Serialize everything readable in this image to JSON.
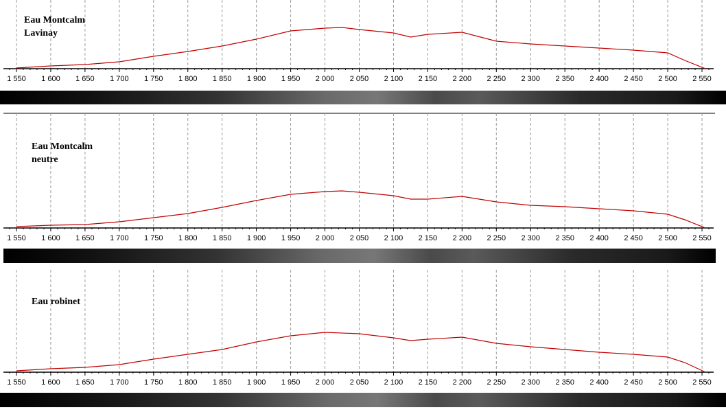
{
  "chart_data": [
    {
      "type": "line",
      "title": [
        "Eau Montcalm",
        "Lavinay"
      ],
      "color": "#c00000",
      "grid": true,
      "x": [
        1550,
        1600,
        1650,
        1700,
        1750,
        1800,
        1850,
        1900,
        1950,
        2000,
        2025,
        2050,
        2100,
        2125,
        2150,
        2200,
        2250,
        2300,
        2350,
        2400,
        2450,
        2500,
        2525,
        2555
      ],
      "values": [
        1,
        4,
        6,
        10,
        18,
        25,
        33,
        43,
        55,
        59,
        60,
        57,
        52,
        46,
        50,
        53,
        40,
        36,
        33,
        30,
        27,
        23,
        12,
        0
      ],
      "xlim": [
        1531,
        2567
      ],
      "ylim": [
        0,
        100
      ],
      "xticks": [
        {
          "value": 1550,
          "label": "1 550"
        },
        {
          "value": 1600,
          "label": "1 600"
        },
        {
          "value": 1650,
          "label": "1 650"
        },
        {
          "value": 1700,
          "label": "1 700"
        },
        {
          "value": 1750,
          "label": "1 750"
        },
        {
          "value": 1800,
          "label": "1 800"
        },
        {
          "value": 1850,
          "label": "1 850"
        },
        {
          "value": 1900,
          "label": "1 900"
        },
        {
          "value": 1950,
          "label": "1 950"
        },
        {
          "value": 2000,
          "label": "2 000"
        },
        {
          "value": 2050,
          "label": "2 050"
        },
        {
          "value": 2100,
          "label": "2 100"
        },
        {
          "value": 2150,
          "label": "2 150"
        },
        {
          "value": 2200,
          "label": "2 200"
        },
        {
          "value": 2250,
          "label": "2 250"
        },
        {
          "value": 2300,
          "label": "2 300"
        },
        {
          "value": 2350,
          "label": "2 350"
        },
        {
          "value": 2400,
          "label": "2 400"
        },
        {
          "value": 2450,
          "label": "2 450"
        },
        {
          "value": 2500,
          "label": "2 500"
        },
        {
          "value": 2550,
          "label": "2 550"
        }
      ]
    },
    {
      "type": "line",
      "title": [
        "Eau Montcalm",
        "neutre"
      ],
      "color": "#c00000",
      "grid": true,
      "x": [
        1550,
        1600,
        1650,
        1700,
        1750,
        1800,
        1850,
        1900,
        1950,
        2000,
        2025,
        2050,
        2100,
        2125,
        2150,
        2200,
        2250,
        2300,
        2350,
        2400,
        2450,
        2500,
        2525,
        2555
      ],
      "values": [
        2,
        4,
        5,
        9,
        15,
        21,
        30,
        40,
        49,
        53,
        54,
        52,
        47,
        42,
        42,
        46,
        38,
        33,
        31,
        28,
        25,
        20,
        12,
        0
      ],
      "xlim": [
        1531,
        2567
      ],
      "ylim": [
        0,
        100
      ],
      "xticks": [
        {
          "value": 1550,
          "label": "1 550"
        },
        {
          "value": 1600,
          "label": "1 600"
        },
        {
          "value": 1650,
          "label": "1 650"
        },
        {
          "value": 1700,
          "label": "1 700"
        },
        {
          "value": 1750,
          "label": "1 750"
        },
        {
          "value": 1800,
          "label": "1 800"
        },
        {
          "value": 1850,
          "label": "1 850"
        },
        {
          "value": 1900,
          "label": "1 900"
        },
        {
          "value": 1950,
          "label": "1 950"
        },
        {
          "value": 2000,
          "label": "2 000"
        },
        {
          "value": 2050,
          "label": "2 050"
        },
        {
          "value": 2100,
          "label": "2 100"
        },
        {
          "value": 2150,
          "label": "2 150"
        },
        {
          "value": 2200,
          "label": "2 200"
        },
        {
          "value": 2250,
          "label": "2 250"
        },
        {
          "value": 2300,
          "label": "2 300"
        },
        {
          "value": 2350,
          "label": "2 350"
        },
        {
          "value": 2400,
          "label": "2 400"
        },
        {
          "value": 2450,
          "label": "2 450"
        },
        {
          "value": 2500,
          "label": "2 500"
        },
        {
          "value": 2550,
          "label": "2 550"
        }
      ]
    },
    {
      "type": "line",
      "title": [
        "Eau robinet"
      ],
      "color": "#c00000",
      "grid": true,
      "x": [
        1550,
        1600,
        1650,
        1700,
        1750,
        1800,
        1850,
        1900,
        1950,
        1980,
        2000,
        2050,
        2100,
        2125,
        2150,
        2200,
        2250,
        2300,
        2350,
        2400,
        2450,
        2500,
        2525,
        2555
      ],
      "values": [
        2,
        5,
        7,
        11,
        19,
        26,
        33,
        44,
        53,
        56,
        58,
        56,
        50,
        46,
        48,
        51,
        42,
        37,
        33,
        29,
        26,
        22,
        14,
        0
      ],
      "xlim": [
        1531,
        2567
      ],
      "ylim": [
        0,
        100
      ],
      "xticks": [
        {
          "value": 1550,
          "label": "1 550"
        },
        {
          "value": 1600,
          "label": "1 600"
        },
        {
          "value": 1650,
          "label": "1 650"
        },
        {
          "value": 1700,
          "label": "1 700"
        },
        {
          "value": 1750,
          "label": "1 750"
        },
        {
          "value": 1800,
          "label": "1 800"
        },
        {
          "value": 1850,
          "label": "1 850"
        },
        {
          "value": 1900,
          "label": "1 900"
        },
        {
          "value": 1950,
          "label": "1 950"
        },
        {
          "value": 2000,
          "label": "2 000"
        },
        {
          "value": 2050,
          "label": "2 050"
        },
        {
          "value": 2100,
          "label": "2 100"
        },
        {
          "value": 2150,
          "label": "2 150"
        },
        {
          "value": 2200,
          "label": "2 200"
        },
        {
          "value": 2250,
          "label": "2 250"
        },
        {
          "value": 2300,
          "label": "2 300"
        },
        {
          "value": 2350,
          "label": "2 350"
        },
        {
          "value": 2400,
          "label": "2 400"
        },
        {
          "value": 2450,
          "label": "2 450"
        },
        {
          "value": 2500,
          "label": "2 500"
        },
        {
          "value": 2550,
          "label": "2 550"
        }
      ]
    }
  ]
}
